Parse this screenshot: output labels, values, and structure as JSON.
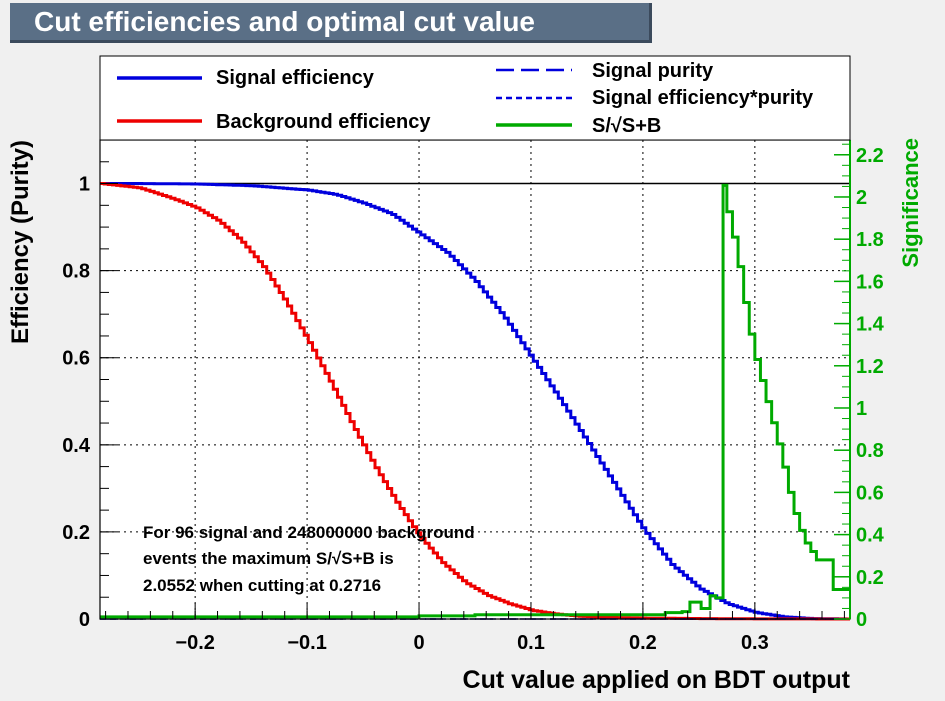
{
  "title": "Cut efficiencies and optimal cut value",
  "colors": {
    "signal_efficiency": "#0000dd",
    "background_efficiency": "#ee0000",
    "significance": "#00aa00",
    "purity": "#000080"
  },
  "chart_data": {
    "type": "line",
    "title": "Cut efficiencies and optimal cut value",
    "xlabel": "Cut value applied on BDT output",
    "ylabel": "Efficiency (Purity)",
    "y2label": "Significance",
    "xlim": [
      -0.285,
      0.385
    ],
    "ylim": [
      0,
      1.1
    ],
    "y2lim": [
      0,
      2.27
    ],
    "grid": true,
    "x_ticks": [
      {
        "value": -0.2,
        "label": "−0.2"
      },
      {
        "value": -0.1,
        "label": "−0.1"
      },
      {
        "value": 0,
        "label": "0"
      },
      {
        "value": 0.1,
        "label": "0.1"
      },
      {
        "value": 0.2,
        "label": "0.2"
      },
      {
        "value": 0.3,
        "label": "0.3"
      }
    ],
    "y_ticks": [
      {
        "value": 0,
        "label": "0"
      },
      {
        "value": 0.2,
        "label": "0.2"
      },
      {
        "value": 0.4,
        "label": "0.4"
      },
      {
        "value": 0.6,
        "label": "0.6"
      },
      {
        "value": 0.8,
        "label": "0.8"
      },
      {
        "value": 1,
        "label": "1"
      }
    ],
    "y2_ticks": [
      {
        "value": 0,
        "label": "0"
      },
      {
        "value": 0.2,
        "label": "0.2"
      },
      {
        "value": 0.4,
        "label": "0.4"
      },
      {
        "value": 0.6,
        "label": "0.6"
      },
      {
        "value": 0.8,
        "label": "0.8"
      },
      {
        "value": 1,
        "label": "1"
      },
      {
        "value": 1.2,
        "label": "1.2"
      },
      {
        "value": 1.4,
        "label": "1.4"
      },
      {
        "value": 1.6,
        "label": "1.6"
      },
      {
        "value": 1.8,
        "label": "1.8"
      },
      {
        "value": 2,
        "label": "2"
      },
      {
        "value": 2.2,
        "label": "2.2"
      }
    ],
    "legend": {
      "placement": "top",
      "entries": [
        {
          "label": "Signal efficiency",
          "series": "signal_efficiency",
          "style": "solid"
        },
        {
          "label": "Background efficiency",
          "series": "background_efficiency",
          "style": "solid"
        },
        {
          "label": "Signal purity",
          "series": "signal_purity",
          "style": "long-dash"
        },
        {
          "label": "Signal efficiency*purity",
          "series": "signal_eff_purity",
          "style": "short-dash"
        },
        {
          "label": "S/√S+B",
          "series": "significance",
          "style": "solid"
        }
      ]
    },
    "annotation": [
      "For 96 signal and 248000000 background",
      "events the maximum S/√S+B is",
      "2.0552 when cutting at 0.2716"
    ],
    "series": [
      {
        "name": "Signal efficiency",
        "key": "signal_efficiency",
        "axis": "left",
        "x": [
          -0.285,
          -0.25,
          -0.2,
          -0.15,
          -0.1,
          -0.075,
          -0.05,
          -0.025,
          0,
          0.025,
          0.05,
          0.075,
          0.1,
          0.125,
          0.15,
          0.175,
          0.2,
          0.225,
          0.25,
          0.275,
          0.3,
          0.325,
          0.35,
          0.385
        ],
        "y": [
          1,
          1,
          0.999,
          0.995,
          0.985,
          0.975,
          0.955,
          0.93,
          0.885,
          0.84,
          0.775,
          0.695,
          0.6,
          0.505,
          0.405,
          0.305,
          0.205,
          0.125,
          0.07,
          0.035,
          0.015,
          0.005,
          0.001,
          0
        ]
      },
      {
        "name": "Background efficiency",
        "key": "background_efficiency",
        "axis": "left",
        "x": [
          -0.285,
          -0.25,
          -0.22,
          -0.2,
          -0.18,
          -0.16,
          -0.14,
          -0.12,
          -0.1,
          -0.08,
          -0.06,
          -0.04,
          -0.02,
          0,
          0.02,
          0.04,
          0.06,
          0.08,
          0.1,
          0.12,
          0.14,
          0.16,
          0.2,
          0.25,
          0.3,
          0.385
        ],
        "y": [
          1,
          0.99,
          0.965,
          0.945,
          0.915,
          0.87,
          0.81,
          0.73,
          0.64,
          0.545,
          0.445,
          0.35,
          0.265,
          0.19,
          0.13,
          0.085,
          0.055,
          0.035,
          0.02,
          0.012,
          0.007,
          0.004,
          0.002,
          0.001,
          0.0003,
          0
        ]
      },
      {
        "name": "Signal purity",
        "key": "signal_purity",
        "axis": "left",
        "x": [
          -0.285,
          0.385
        ],
        "y": [
          0,
          0
        ]
      },
      {
        "name": "Signal efficiency*purity",
        "key": "signal_eff_purity",
        "axis": "left",
        "x": [
          -0.285,
          0.385
        ],
        "y": [
          0,
          0
        ]
      },
      {
        "name": "S/√S+B",
        "key": "significance",
        "axis": "right",
        "step": true,
        "x": [
          -0.285,
          -0.2,
          -0.1,
          0,
          0.05,
          0.1,
          0.15,
          0.2,
          0.22,
          0.235,
          0.242,
          0.252,
          0.26,
          0.265,
          0.2716,
          0.275,
          0.28,
          0.285,
          0.29,
          0.295,
          0.3,
          0.305,
          0.31,
          0.315,
          0.32,
          0.325,
          0.33,
          0.335,
          0.34,
          0.345,
          0.35,
          0.355,
          0.36,
          0.365,
          0.37,
          0.375,
          0.385
        ],
        "y": [
          0.01,
          0.01,
          0.01,
          0.015,
          0.02,
          0.02,
          0.02,
          0.02,
          0.03,
          0.035,
          0.08,
          0.05,
          0.11,
          0.1,
          2.0552,
          1.93,
          1.81,
          1.67,
          1.5,
          1.35,
          1.23,
          1.13,
          1.03,
          0.93,
          0.83,
          0.72,
          0.6,
          0.5,
          0.42,
          0.36,
          0.32,
          0.28,
          0.28,
          0.28,
          0.14,
          0.14,
          0.14
        ]
      }
    ],
    "reference_lines": [
      {
        "axis": "left",
        "y": 1,
        "color": "#000000"
      }
    ]
  }
}
